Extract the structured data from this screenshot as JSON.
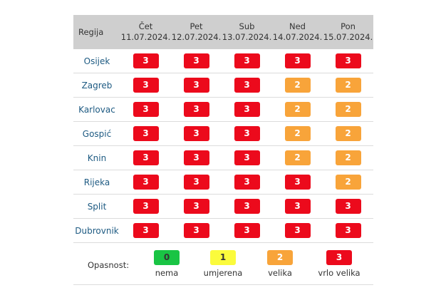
{
  "header": {
    "region_label": "Regija",
    "days": [
      {
        "day": "Čet",
        "date": "11.07.2024."
      },
      {
        "day": "Pet",
        "date": "12.07.2024."
      },
      {
        "day": "Sub",
        "date": "13.07.2024."
      },
      {
        "day": "Ned",
        "date": "14.07.2024."
      },
      {
        "day": "Pon",
        "date": "15.07.2024."
      }
    ]
  },
  "rows": [
    {
      "region": "Osijek",
      "levels": [
        "3",
        "3",
        "3",
        "3",
        "3"
      ]
    },
    {
      "region": "Zagreb",
      "levels": [
        "3",
        "3",
        "3",
        "2",
        "2"
      ]
    },
    {
      "region": "Karlovac",
      "levels": [
        "3",
        "3",
        "3",
        "2",
        "2"
      ]
    },
    {
      "region": "Gospić",
      "levels": [
        "3",
        "3",
        "3",
        "2",
        "2"
      ]
    },
    {
      "region": "Knin",
      "levels": [
        "3",
        "3",
        "3",
        "2",
        "2"
      ]
    },
    {
      "region": "Rijeka",
      "levels": [
        "3",
        "3",
        "3",
        "3",
        "2"
      ]
    },
    {
      "region": "Split",
      "levels": [
        "3",
        "3",
        "3",
        "3",
        "3"
      ]
    },
    {
      "region": "Dubrovnik",
      "levels": [
        "3",
        "3",
        "3",
        "3",
        "3"
      ]
    }
  ],
  "legend": {
    "title": "Opasnost:",
    "items": [
      {
        "level": "0",
        "label": "nema"
      },
      {
        "level": "1",
        "label": "umjerena"
      },
      {
        "level": "2",
        "label": "velika"
      },
      {
        "level": "3",
        "label": "vrlo velika"
      }
    ]
  },
  "colors": {
    "level_0": "#19c444",
    "level_1": "#fbfb3c",
    "level_2": "#f8a43a",
    "level_3": "#ec0a1c",
    "header_bg": "#cfcfcf",
    "region_text": "#1d5a82"
  }
}
